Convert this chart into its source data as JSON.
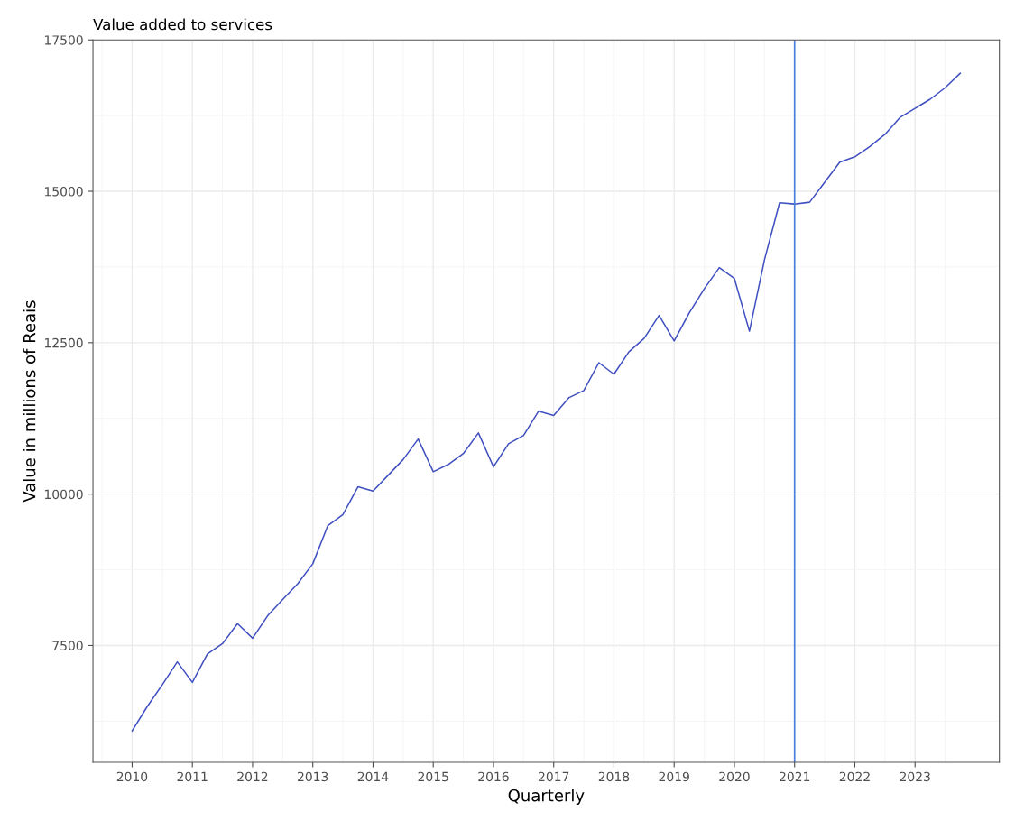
{
  "chart_data": {
    "type": "line",
    "title": "Value added to services",
    "xlabel": "Quarterly",
    "ylabel": "Value in millions of Reais",
    "x": [
      2010,
      2010.25,
      2010.5,
      2010.75,
      2011,
      2011.25,
      2011.5,
      2011.75,
      2012,
      2012.25,
      2012.5,
      2012.75,
      2013,
      2013.25,
      2013.5,
      2013.75,
      2014,
      2014.25,
      2014.5,
      2014.75,
      2015,
      2015.25,
      2015.5,
      2015.75,
      2016,
      2016.25,
      2016.5,
      2016.75,
      2017,
      2017.25,
      2017.5,
      2017.75,
      2018,
      2018.25,
      2018.5,
      2018.75,
      2019,
      2019.25,
      2019.5,
      2019.75,
      2020,
      2020.25,
      2020.5,
      2020.75,
      2021,
      2021.25,
      2021.5,
      2021.75,
      2022,
      2022.25,
      2022.5,
      2022.75,
      2023,
      2023.25,
      2023.5,
      2023.75
    ],
    "series": [
      {
        "color": "#4050c0",
        "values": [
          6090,
          6490,
          6850,
          7230,
          6890,
          7360,
          7530,
          7860,
          7620,
          7990,
          8260,
          8520,
          8850,
          9480,
          9660,
          10120,
          10050,
          10310,
          10570,
          10910,
          10370,
          10490,
          10670,
          11010,
          10450,
          10830,
          10970,
          11370,
          11300,
          11590,
          11710,
          12170,
          11980,
          12350,
          12570,
          12950,
          12530,
          12990,
          13390,
          13740,
          13560,
          12690,
          13870,
          14810,
          14790,
          14820,
          15150,
          15480,
          15570,
          15740,
          15940,
          16220,
          16370,
          16520,
          16710,
          16950
        ]
      }
    ],
    "xlim": [
      2009.35,
      2024.4
    ],
    "ylim": [
      5570,
      17500
    ],
    "xticks": [
      2010,
      2011,
      2012,
      2013,
      2014,
      2015,
      2016,
      2017,
      2018,
      2019,
      2020,
      2021,
      2022,
      2023
    ],
    "yticks": [
      7500,
      10000,
      12500,
      15000,
      17500
    ],
    "ref_lines": [
      {
        "axis": "x",
        "value": 2021,
        "color": "#4a7fe0"
      }
    ],
    "grid": true,
    "legend": false,
    "marker": "none",
    "line_style": "solid"
  }
}
